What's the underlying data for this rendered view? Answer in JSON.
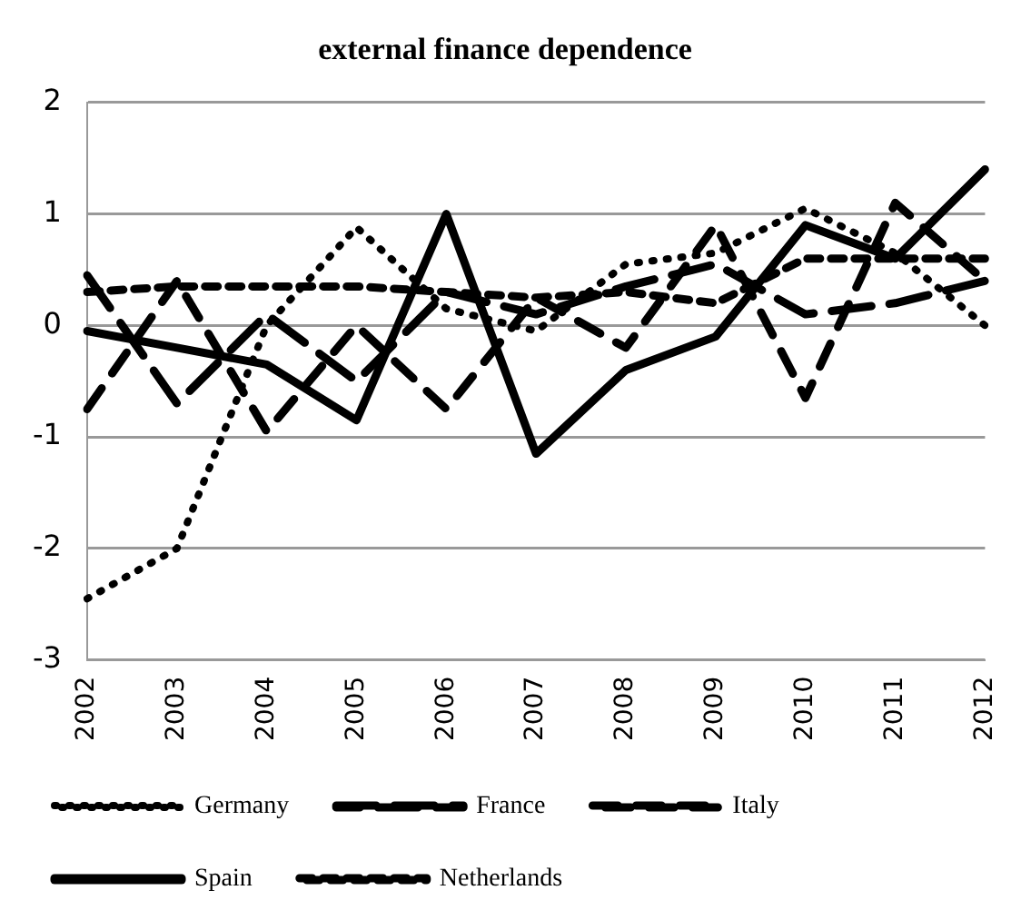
{
  "chart_data": {
    "type": "line",
    "title": "external finance dependence",
    "categories": [
      "2002",
      "2003",
      "2004",
      "2005",
      "2006",
      "2007",
      "2008",
      "2009",
      "2010",
      "2011",
      "2012"
    ],
    "series": [
      {
        "name": "Germany",
        "color": "#000000",
        "line_style": "dotted",
        "values": [
          -2.45,
          -2.0,
          0.0,
          0.88,
          0.15,
          -0.05,
          0.55,
          0.65,
          1.05,
          0.65,
          0.0
        ]
      },
      {
        "name": "France",
        "color": "#000000",
        "line_style": "dashed",
        "values": [
          0.45,
          -0.7,
          0.1,
          -0.5,
          0.3,
          0.1,
          0.35,
          0.55,
          0.1,
          0.2,
          0.4
        ]
      },
      {
        "name": "Italy",
        "color": "#000000",
        "line_style": "dashed",
        "values": [
          -0.75,
          0.4,
          -0.95,
          0.0,
          -0.75,
          0.25,
          -0.2,
          0.9,
          -0.65,
          1.1,
          0.4
        ]
      },
      {
        "name": "Spain",
        "color": "#000000",
        "line_style": "solid",
        "values": [
          -0.05,
          -0.2,
          -0.35,
          -0.85,
          1.0,
          -1.15,
          -0.4,
          -0.1,
          0.9,
          0.6,
          1.4
        ]
      },
      {
        "name": "Netherlands",
        "color": "#000000",
        "line_style": "dashed",
        "values": [
          0.3,
          0.35,
          0.35,
          0.35,
          0.3,
          0.25,
          0.3,
          0.2,
          0.6,
          0.6,
          0.6
        ]
      }
    ],
    "ylim": [
      -3,
      2
    ],
    "yticks": [
      -3,
      -2,
      -1,
      0,
      1,
      2
    ],
    "grid": "y",
    "legend": "bottom",
    "marker": "none"
  }
}
